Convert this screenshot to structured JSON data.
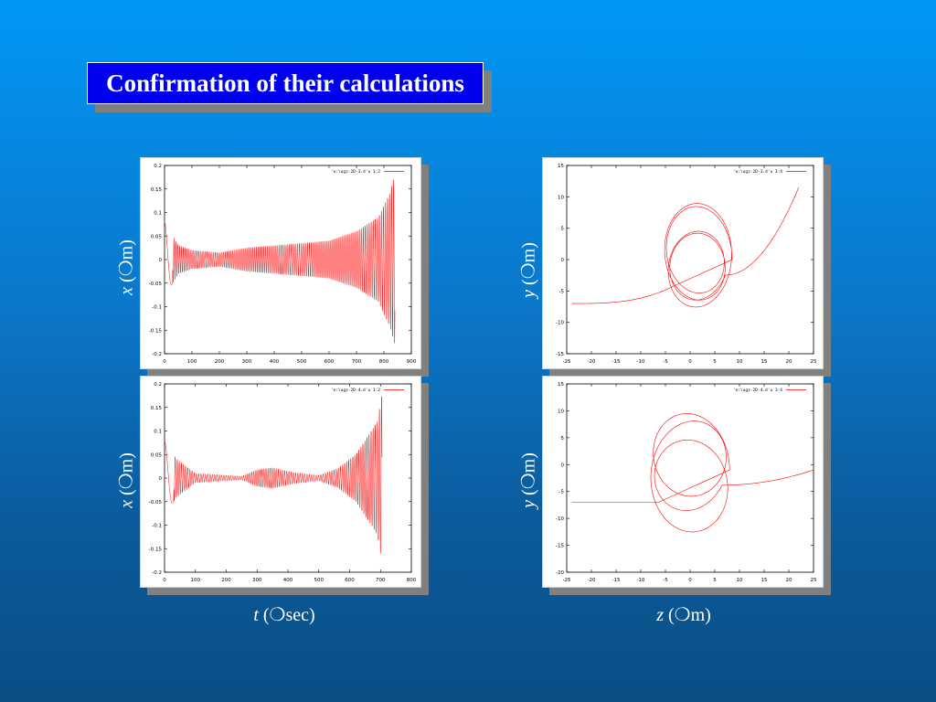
{
  "title": "Confirmation of their calculations",
  "axis_labels": {
    "x_left": {
      "var": "t",
      "open": " (",
      "mu": "❍",
      "unit": "sec)"
    },
    "x_right": {
      "var": "z",
      "open": " (",
      "mu": "❍",
      "unit": "m)"
    },
    "y_tl": {
      "var": "x",
      "open": " (",
      "mu": "❍",
      "unit": "m)"
    },
    "y_bl": {
      "var": "x",
      "open": " (",
      "mu": "❍",
      "unit": "m)"
    },
    "y_tr": {
      "var": "y",
      "open": " (",
      "mu": "❍",
      "unit": "m)"
    },
    "y_br": {
      "var": "y",
      "open": " (",
      "mu": "❍",
      "unit": "m)"
    }
  },
  "colors": {
    "line": "#ff0000",
    "title_bg": "#0000f0"
  },
  "chart_data": [
    {
      "id": "tl",
      "type": "line",
      "legend": "'e:\\ugz-2D-3.d'u 1:2",
      "xlim": [
        0,
        900
      ],
      "ylim": [
        -0.2,
        0.2
      ],
      "xticks": [
        "0",
        "100",
        "200",
        "300",
        "400",
        "500",
        "600",
        "700",
        "800",
        "900"
      ],
      "yticks": [
        "-0.2",
        "-0.15",
        "-0.1",
        "-0.05",
        "0",
        "0.05",
        "0.1",
        "0.15",
        "0.2"
      ],
      "series": [
        {
          "x_range": [
            0,
            840
          ],
          "envelope": [
            [
              0,
              0.08
            ],
            [
              50,
              0.03
            ],
            [
              100,
              0.02
            ],
            [
              200,
              0.015
            ],
            [
              300,
              0.025
            ],
            [
              400,
              0.03
            ],
            [
              500,
              0.035
            ],
            [
              600,
              0.04
            ],
            [
              700,
              0.06
            ],
            [
              780,
              0.09
            ],
            [
              820,
              0.14
            ],
            [
              840,
              0.18
            ]
          ]
        }
      ]
    },
    {
      "id": "bl",
      "type": "line",
      "legend": "'e:\\ugz-2D-4.d'u 1:2",
      "xlim": [
        0,
        800
      ],
      "ylim": [
        -0.2,
        0.2
      ],
      "xticks": [
        "0",
        "100",
        "200",
        "300",
        "400",
        "500",
        "600",
        "700",
        "800"
      ],
      "yticks": [
        "-0.2",
        "-0.15",
        "-0.1",
        "-0.05",
        "0",
        "0.05",
        "0.1",
        "0.15",
        "0.2"
      ],
      "series": [
        {
          "x_range": [
            0,
            705
          ],
          "envelope": [
            [
              0,
              0.08
            ],
            [
              40,
              0.04
            ],
            [
              100,
              0.01
            ],
            [
              200,
              0.006
            ],
            [
              250,
              0.004
            ],
            [
              300,
              0.018
            ],
            [
              350,
              0.022
            ],
            [
              420,
              0.012
            ],
            [
              500,
              0.006
            ],
            [
              560,
              0.02
            ],
            [
              620,
              0.05
            ],
            [
              660,
              0.09
            ],
            [
              690,
              0.12
            ],
            [
              705,
              0.18
            ]
          ]
        }
      ]
    },
    {
      "id": "tr",
      "type": "line",
      "legend": "'e:\\ugz-2D-3.d'u 3:4",
      "xlim": [
        -25,
        25
      ],
      "ylim": [
        -15,
        15
      ],
      "xticks": [
        "-25",
        "-20",
        "-15",
        "-10",
        "-5",
        "0",
        "5",
        "10",
        "15",
        "20",
        "25"
      ],
      "yticks": [
        "-15",
        "-10",
        "-5",
        "0",
        "5",
        "10",
        "15"
      ],
      "series": [
        {
          "x_start": -24,
          "y_start": -7,
          "x_end": 22,
          "y_end": 11.5,
          "loop_center": [
            1.5,
            0
          ],
          "loop_radius": [
            7,
            9
          ],
          "loops": 3
        }
      ]
    },
    {
      "id": "br",
      "type": "line",
      "legend": "'e:\\ugz-2D-4.d'u 3:4",
      "xlim": [
        -25,
        25
      ],
      "ylim": [
        -20,
        15
      ],
      "xticks": [
        "-25",
        "-20",
        "-15",
        "-10",
        "-5",
        "0",
        "5",
        "10",
        "15",
        "20",
        "25"
      ],
      "yticks": [
        "-20",
        "-15",
        "-10",
        "-5",
        "0",
        "5",
        "10",
        "15"
      ],
      "series": [
        {
          "x_start": -24,
          "y_start": -7,
          "x_end": 25,
          "y_end": -1,
          "loop_center": [
            0,
            -1
          ],
          "loop_radius": [
            8,
            12
          ],
          "loops": 2
        }
      ]
    }
  ]
}
